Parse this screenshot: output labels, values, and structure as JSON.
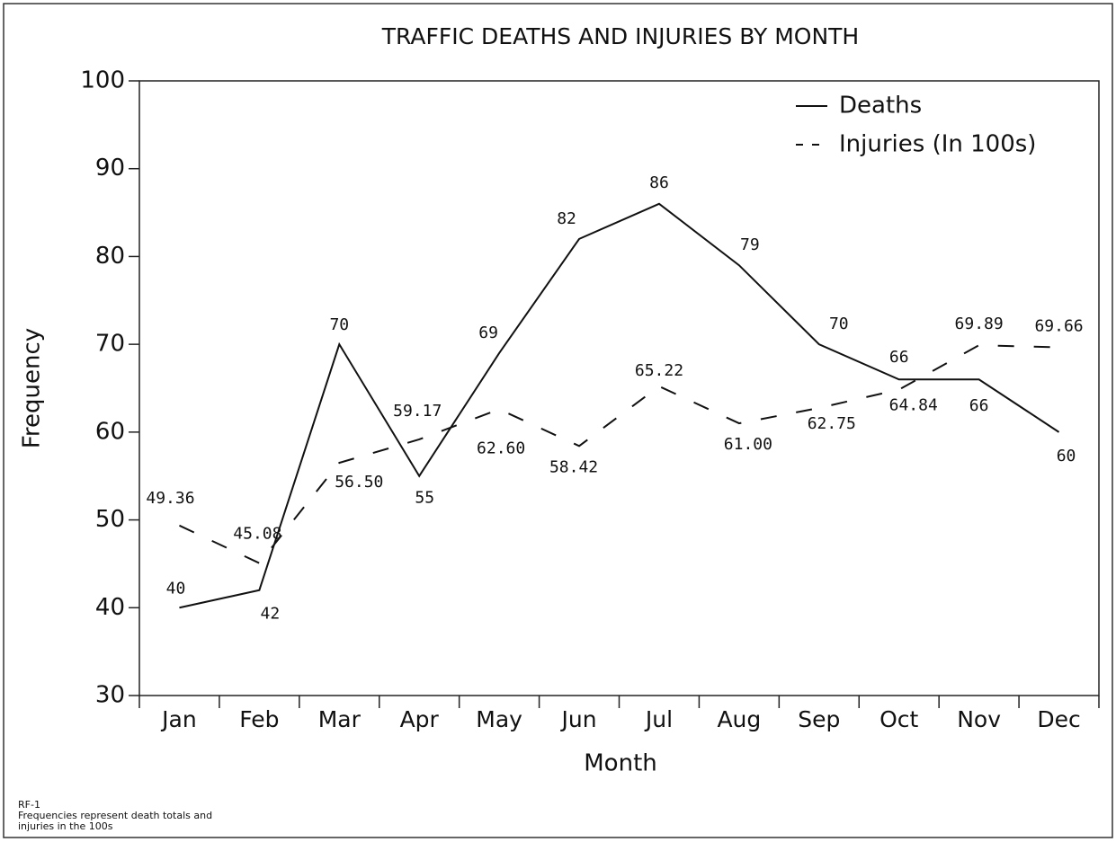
{
  "chart_data": {
    "type": "line",
    "title": "TRAFFIC DEATHS AND INJURIES BY MONTH",
    "x_label": "Month",
    "y_label": "Frequency",
    "categories": [
      "Jan",
      "Feb",
      "Mar",
      "Apr",
      "May",
      "Jun",
      "Jul",
      "Aug",
      "Sep",
      "Oct",
      "Nov",
      "Dec"
    ],
    "series": [
      {
        "name": "Deaths",
        "color": "#111111",
        "style": "solid",
        "values": [
          40,
          42,
          70,
          55,
          69,
          82,
          86,
          79,
          70,
          66,
          66,
          60
        ]
      },
      {
        "name": "Injuries (In 100s)",
        "color": "#111111",
        "style": "dashed",
        "values": [
          49.36,
          45.08,
          56.5,
          59.17,
          62.6,
          58.42,
          65.22,
          61,
          62.75,
          64.84,
          69.89,
          69.66
        ],
        "value_labels": [
          "49.36",
          "45.08",
          "56.50",
          "59.17",
          "62.60",
          "58.42",
          "65.22",
          "61.00",
          "62.75",
          "64.84",
          "69.89",
          "69.66"
        ]
      }
    ],
    "ylim": [
      30,
      100
    ],
    "yticks": [
      30,
      40,
      50,
      60,
      70,
      80,
      90,
      100
    ],
    "legend": "upper right",
    "notes": [
      "RF-1",
      "Frequencies represent death totals and",
      "injuries in the 100s"
    ]
  }
}
